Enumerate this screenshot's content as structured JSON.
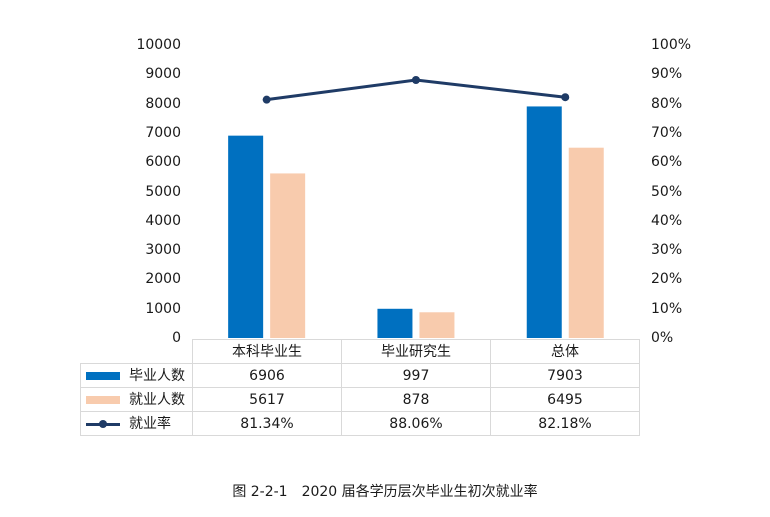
{
  "chart_data": {
    "type": "bar+line",
    "title": "",
    "categories": [
      "本科毕业生",
      "毕业研究生",
      "总体"
    ],
    "series": [
      {
        "name": "毕业人数",
        "kind": "bar",
        "axis": "left",
        "color": "#0070C0",
        "values": [
          6906,
          997,
          7903
        ]
      },
      {
        "name": "就业人数",
        "kind": "bar",
        "axis": "left",
        "color": "#F8CBAD",
        "values": [
          5617,
          878,
          6495
        ]
      },
      {
        "name": "就业率",
        "kind": "line",
        "axis": "right",
        "color": "#1F3B66",
        "values": [
          81.34,
          88.06,
          82.18
        ],
        "labels": [
          "81.34%",
          "88.06%",
          "82.18%"
        ]
      }
    ],
    "left_axis": {
      "ylim": [
        0,
        10000
      ],
      "ticks": [
        "0",
        "1000",
        "2000",
        "3000",
        "4000",
        "5000",
        "6000",
        "7000",
        "8000",
        "9000",
        "10000"
      ]
    },
    "right_axis": {
      "ylim": [
        0,
        100
      ],
      "ticks": [
        "0%",
        "10%",
        "20%",
        "30%",
        "40%",
        "50%",
        "60%",
        "70%",
        "80%",
        "90%",
        "100%"
      ]
    },
    "grid": false,
    "legend_position": "data-table-bottom",
    "data_table": true
  },
  "table": {
    "headers": [
      "本科毕业生",
      "毕业研究生",
      "总体"
    ],
    "rows": [
      {
        "legend": "毕业人数",
        "values": [
          "6906",
          "997",
          "7903"
        ]
      },
      {
        "legend": "就业人数",
        "values": [
          "5617",
          "878",
          "6495"
        ]
      },
      {
        "legend": "就业率",
        "values": [
          "81.34%",
          "88.06%",
          "82.18%"
        ]
      }
    ]
  },
  "caption": "图 2-2-1　2020 届各学历层次毕业生初次就业率"
}
